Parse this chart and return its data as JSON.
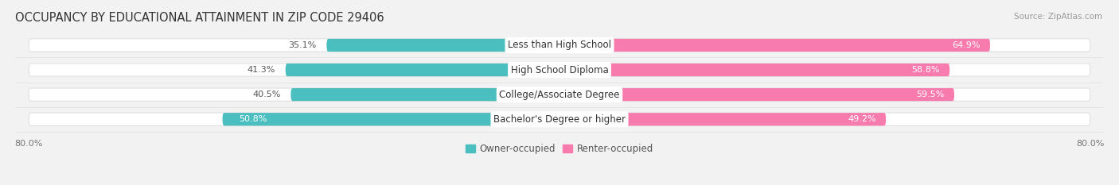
{
  "title": "OCCUPANCY BY EDUCATIONAL ATTAINMENT IN ZIP CODE 29406",
  "source": "Source: ZipAtlas.com",
  "categories": [
    "Less than High School",
    "High School Diploma",
    "College/Associate Degree",
    "Bachelor's Degree or higher"
  ],
  "owner_values": [
    35.1,
    41.3,
    40.5,
    50.8
  ],
  "renter_values": [
    64.9,
    58.8,
    59.5,
    49.2
  ],
  "owner_color": "#4BBFBF",
  "renter_color": "#F87BAD",
  "bg_color": "#F2F2F2",
  "bar_bg_color": "#FFFFFF",
  "axis_min": -80.0,
  "axis_max": 80.0,
  "title_fontsize": 10.5,
  "label_fontsize": 8.5,
  "value_fontsize": 8,
  "legend_fontsize": 8.5,
  "owner_label_color_dark": "#555555",
  "owner_label_color_light": "#FFFFFF",
  "renter_label_color": "#FFFFFF"
}
